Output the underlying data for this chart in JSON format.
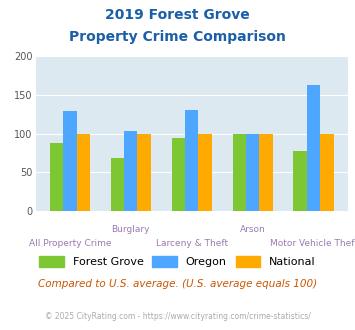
{
  "title_line1": "2019 Forest Grove",
  "title_line2": "Property Crime Comparison",
  "categories": [
    "All Property Crime",
    "Burglary",
    "Larceny & Theft",
    "Arson",
    "Motor Vehicle Theft"
  ],
  "group_labels_top": [
    "",
    "Burglary",
    "",
    "Arson",
    ""
  ],
  "group_labels_bottom": [
    "All Property Crime",
    "",
    "Larceny & Theft",
    "",
    "Motor Vehicle Theft"
  ],
  "forest_grove": [
    88,
    68,
    95,
    100,
    78
  ],
  "oregon": [
    129,
    103,
    130,
    100,
    163
  ],
  "national": [
    100,
    100,
    100,
    100,
    100
  ],
  "colors": {
    "forest_grove": "#7dc832",
    "oregon": "#4da6ff",
    "national": "#ffaa00"
  },
  "ylim": [
    0,
    200
  ],
  "yticks": [
    0,
    50,
    100,
    150,
    200
  ],
  "bg_color": "#dce9f0",
  "title_color": "#1a5fa8",
  "xlabel_color_top": "#9c7ab0",
  "xlabel_color_bot": "#9c7ab0",
  "legend_labels": [
    "Forest Grove",
    "Oregon",
    "National"
  ],
  "note_text": "Compared to U.S. average. (U.S. average equals 100)",
  "footer_text": "© 2025 CityRating.com - https://www.cityrating.com/crime-statistics/",
  "note_color": "#cc5500",
  "footer_color": "#aaaaaa",
  "footer_link_color": "#4da6ff"
}
